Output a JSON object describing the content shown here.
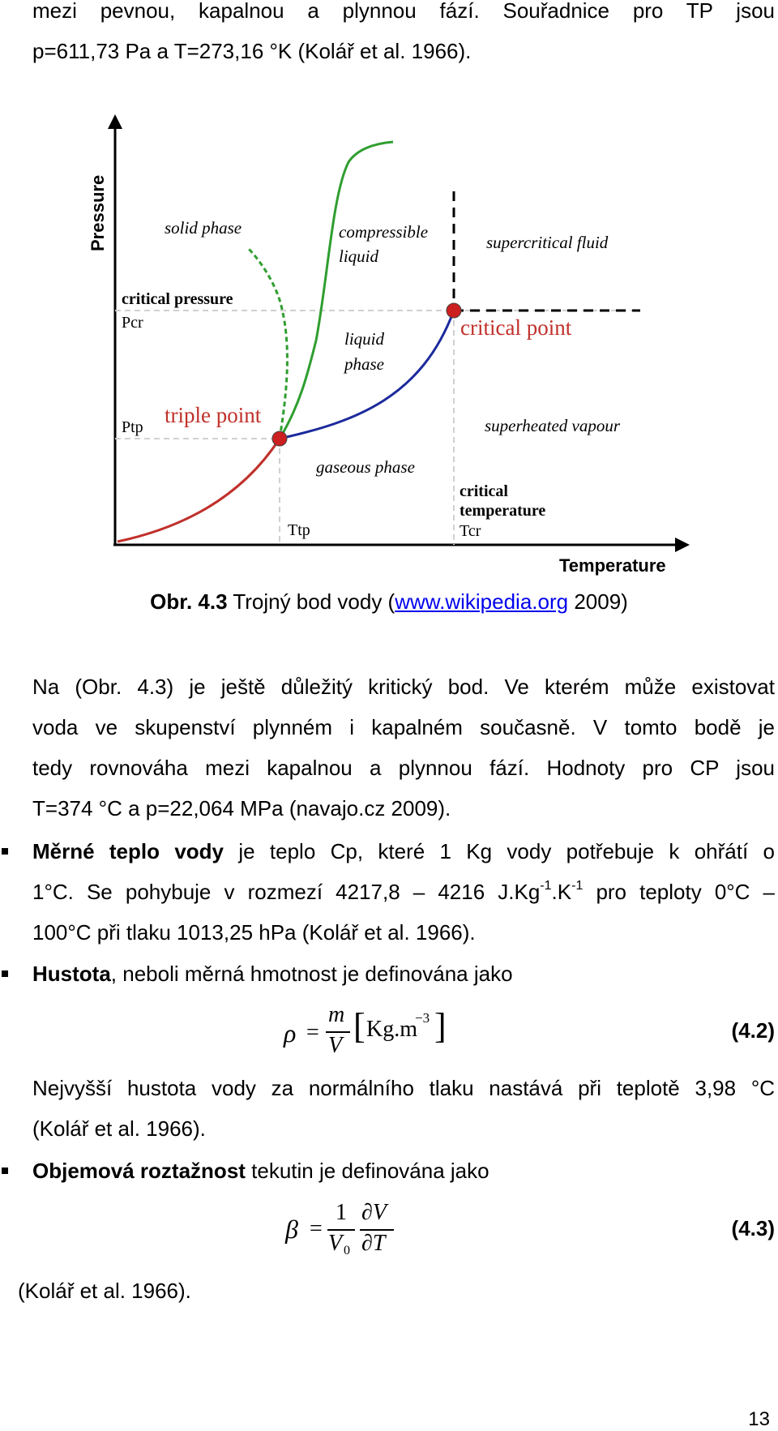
{
  "top_paragraph": {
    "line1": "mezi pevnou, kapalnou a plynnou fází. Souřadnice pro TP jsou",
    "line2": "p=611,73 Pa a T=273,16 °K (Kolář et al. 1966)."
  },
  "diagram": {
    "axis_y": "Pressure",
    "axis_x": "Temperature",
    "solid_phase": "solid phase",
    "compressible": "compressible",
    "liquid": "liquid",
    "supercritical_fluid": "supercritical fluid",
    "critical_pressure": "critical pressure",
    "pcr": "Pcr",
    "ptp": "Ptp",
    "liquid_phase_1": "liquid",
    "liquid_phase_2": "phase",
    "critical_point": "critical point",
    "triple_point": "triple point",
    "superheated_vapour": "superheated vapour",
    "gaseous_phase": "gaseous phase",
    "critical_1": "critical",
    "temperature_label": "temperature",
    "tcr": "Tcr",
    "ttp": "Ttp",
    "colors": {
      "solid_curve": "#c0302a",
      "melting_curve": "#2f9e2f",
      "vapor_curve": "#1c2a9c",
      "point_fill": "#cc1f1f",
      "critical_text": "#c0302a",
      "triple_text": "#c0302a"
    }
  },
  "caption": {
    "prefix": "Obr. 4.3",
    "text": " Trojný bod vody (",
    "link": "www.wikipedia.org",
    "suffix": " 2009)"
  },
  "para_cp": {
    "l1": "Na (Obr. 4.3) je ještě důležitý kritický bod. Ve kterém může existovat",
    "l2": "voda ve skupenství plynném i kapalném současně. V tomto bodě je",
    "l3": "tedy rovnováha mezi kapalnou a plynnou fází. Hodnoty pro CP jsou",
    "l4": "T=374 °C a p=22,064 MPa (navajo.cz 2009)."
  },
  "bullet_heat": {
    "bold": "Měrné teplo vody",
    "l1_rest": " je teplo Cp, které 1 Kg vody potřebuje k ohřátí o",
    "l2_a": "1°C. Se pohybuje v rozmezí 4217,8 – 4216 J.Kg",
    "l2_sup1": "-1",
    "l2_b": ".K",
    "l2_sup2": "-1",
    "l2_c": " pro teploty 0°C –",
    "l3": "100°C při tlaku 1013,25 hPa (Kolář et al. 1966)."
  },
  "bullet_density": {
    "bold": "Hustota",
    "rest": ", neboli měrná hmotnost je definována jako"
  },
  "eq42": {
    "lhs": "ρ",
    "eq": "=",
    "num": "m",
    "den": "V",
    "unit": "Kg.m",
    "unit_sup": "−3",
    "number": "(4.2)"
  },
  "para_density": {
    "l1": "Nejvyšší hustota vody za normálního tlaku nastává při teplotě 3,98 °C",
    "l2": "(Kolář et al. 1966)."
  },
  "bullet_expansion": {
    "bold": "Objemová roztažnost",
    "rest": " tekutin je definována jako"
  },
  "eq43": {
    "lhs": "β",
    "eq": "=",
    "num1": "1",
    "den1": "V",
    "den1_sub": "0",
    "num2": "∂V",
    "den2": "∂T",
    "number": "(4.3)"
  },
  "final_ref": "(Kolář et al. 1966).",
  "page_number": "13"
}
